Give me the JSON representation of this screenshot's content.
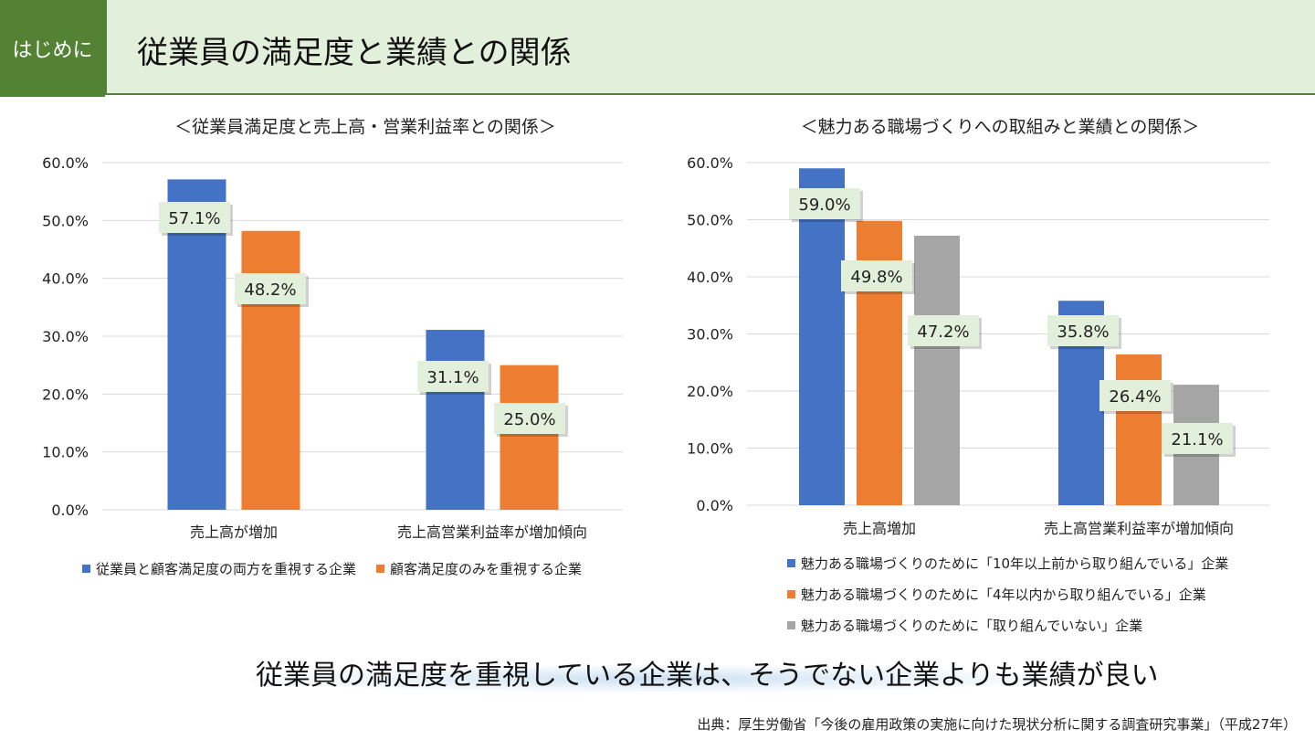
{
  "header": {
    "tag": "はじめに",
    "title": "従業員の満足度と業績との関係"
  },
  "chart_data": [
    {
      "type": "bar",
      "title": "＜従業員満足度と売上高・営業利益率との関係＞",
      "categories": [
        "売上高が増加",
        "売上高営業利益率が増加傾向"
      ],
      "series": [
        {
          "name": "従業員と顧客満足度の両方を重視する企業",
          "color": "#4472c4",
          "values": [
            57.1,
            31.1
          ],
          "labels": [
            "57.1%",
            "31.1%"
          ]
        },
        {
          "name": "顧客満足度のみを重視する企業",
          "color": "#ed7d31",
          "values": [
            48.2,
            25.0
          ],
          "labels": [
            "48.2%",
            "25.0%"
          ]
        }
      ],
      "ylim": [
        0,
        60
      ],
      "yticks": [
        "0.0%",
        "10.0%",
        "20.0%",
        "30.0%",
        "40.0%",
        "50.0%",
        "60.0%"
      ],
      "xlabel": "",
      "ylabel": "",
      "grid": true,
      "legend": "bottom"
    },
    {
      "type": "bar",
      "title": "＜魅力ある職場づくりへの取組みと業績との関係＞",
      "categories": [
        "売上高増加",
        "売上高営業利益率が増加傾向"
      ],
      "series": [
        {
          "name": "魅力ある職場づくりのために「10年以上前から取り組んでいる」企業",
          "color": "#4472c4",
          "values": [
            59.0,
            35.8
          ],
          "labels": [
            "59.0%",
            "35.8%"
          ]
        },
        {
          "name": "魅力ある職場づくりのために「4年以内から取り組んでいる」企業",
          "color": "#ed7d31",
          "values": [
            49.8,
            26.4
          ],
          "labels": [
            "49.8%",
            "26.4%"
          ]
        },
        {
          "name": "魅力ある職場づくりのために「取り組んでいない」企業",
          "color": "#a5a5a5",
          "values": [
            47.2,
            21.1
          ],
          "labels": [
            "47.2%",
            "21.1%"
          ]
        }
      ],
      "ylim": [
        0,
        60
      ],
      "yticks": [
        "0.0%",
        "10.0%",
        "20.0%",
        "30.0%",
        "40.0%",
        "50.0%",
        "60.0%"
      ],
      "xlabel": "",
      "ylabel": "",
      "grid": true,
      "legend": "bottom"
    }
  ],
  "conclusion": "従業員の満足度を重視している企業は、そうでない企業よりも業績が良い",
  "source": "出典：厚生労働省「今後の雇用政策の実施に向けた現状分析に関する調査研究事業」（平成27年）"
}
